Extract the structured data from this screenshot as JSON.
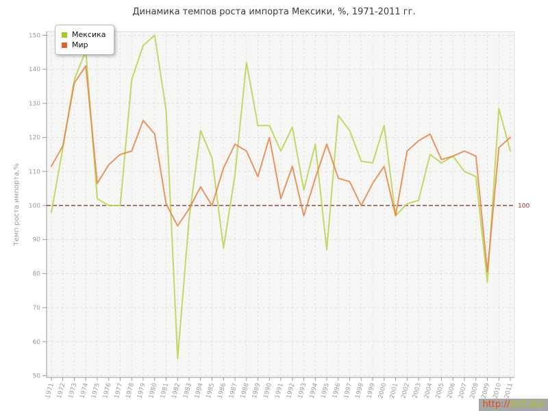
{
  "page": {
    "title": "Динамика темпов роста импорта Мексики, %, 1971-2011 гг."
  },
  "chart_data": {
    "type": "line",
    "title": "Динамика темпов роста импорта Мексики, %, 1971-2011 гг.",
    "xlabel": "",
    "ylabel": "Темп роста импорта,%",
    "x": [
      1971,
      1972,
      1973,
      1974,
      1975,
      1976,
      1977,
      1978,
      1979,
      1980,
      1981,
      1982,
      1983,
      1984,
      1985,
      1986,
      1987,
      1988,
      1989,
      1990,
      1991,
      1992,
      1993,
      1994,
      1995,
      1996,
      1997,
      1998,
      1999,
      2000,
      2001,
      2002,
      2003,
      2004,
      2005,
      2006,
      2007,
      2008,
      2009,
      2010,
      2011
    ],
    "series": [
      {
        "name": "Мексика",
        "color": "#b9d24b",
        "legend_color": "#a6cb21",
        "values": [
          98,
          117,
          137,
          145.5,
          102,
          100,
          100,
          137,
          147,
          150,
          128,
          55,
          96,
          122,
          114,
          87.5,
          109,
          142,
          123.5,
          123.5,
          116,
          123,
          104.5,
          118,
          87,
          126.5,
          122,
          113,
          112.5,
          123.5,
          97,
          100.5,
          101.5,
          115,
          112.5,
          114.5,
          110,
          108.5,
          77.5,
          128.5,
          116
        ]
      },
      {
        "name": "Мир",
        "color": "#e58247",
        "legend_color": "#e0622a",
        "values": [
          111.5,
          117.5,
          136,
          141,
          106.5,
          112,
          115,
          116,
          125,
          121,
          100.5,
          94,
          99,
          105.5,
          100,
          111,
          118,
          116,
          108.5,
          120,
          102,
          111.5,
          97,
          108,
          118,
          108,
          107,
          100,
          106.5,
          111.5,
          97,
          116,
          119,
          121,
          113.5,
          114.5,
          116,
          114.5,
          80.5,
          117,
          120
        ]
      }
    ],
    "ylim": [
      50,
      150
    ],
    "yticks": [
      50,
      60,
      70,
      80,
      90,
      100,
      110,
      120,
      130,
      140,
      150
    ],
    "grid": true,
    "legend_position": "top-left",
    "reference_line": {
      "value": 100,
      "label": "100",
      "color": "#8e1f1f"
    }
  },
  "watermark": {
    "text": "http://be5.biz/"
  }
}
